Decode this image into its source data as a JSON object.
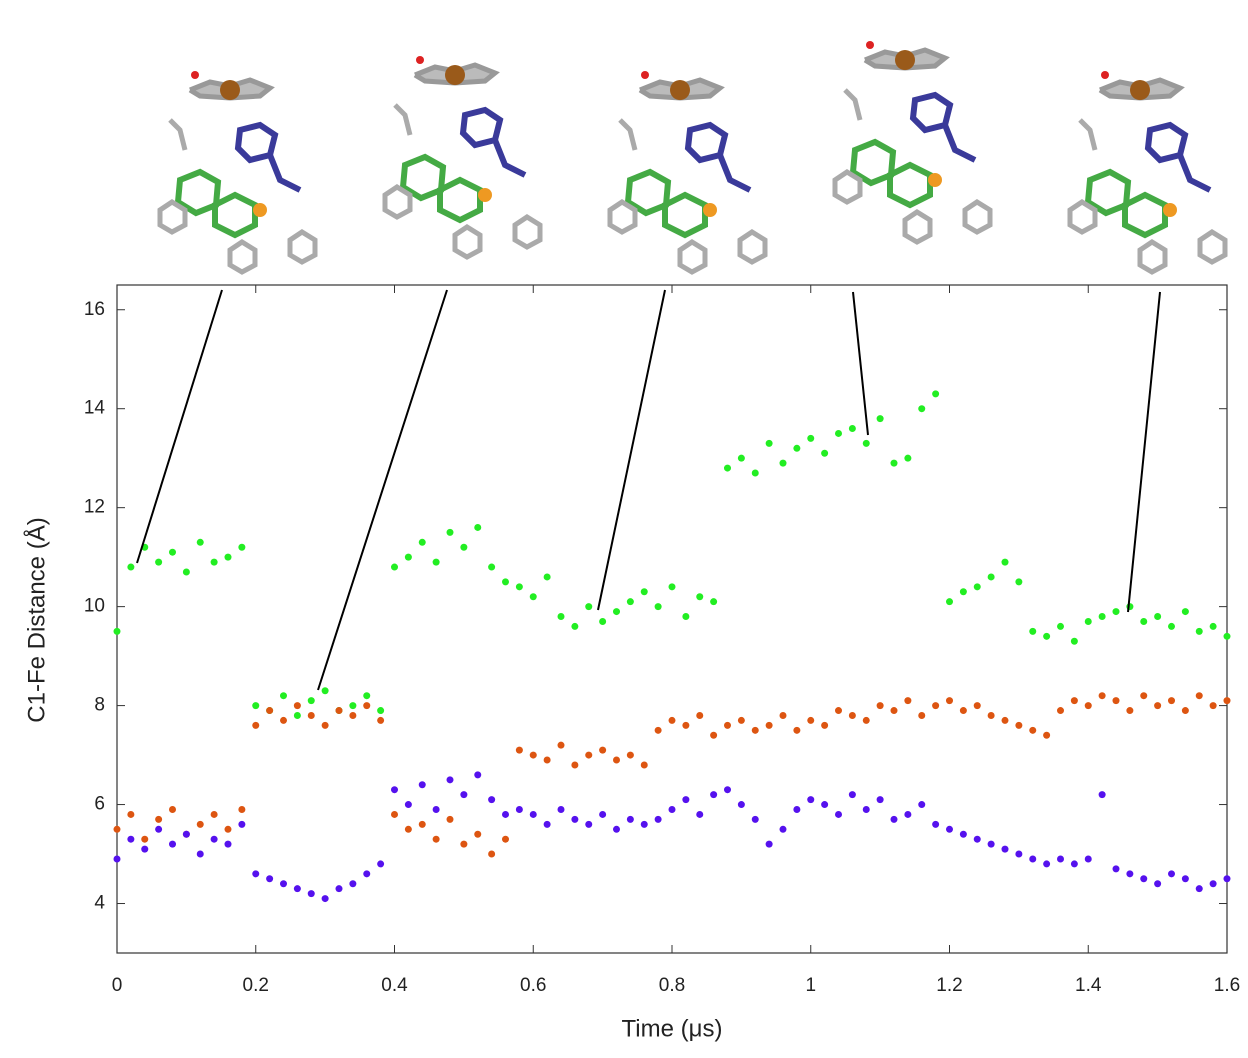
{
  "chart_data": {
    "type": "scatter",
    "xlabel": "Time (μs)",
    "ylabel": "C1-Fe Distance (Å)",
    "xlim": [
      0,
      1.6
    ],
    "ylim": [
      3,
      16.5
    ],
    "xticks": [
      0,
      0.2,
      0.4,
      0.6,
      0.8,
      1,
      1.2,
      1.4,
      1.6
    ],
    "yticks": [
      4,
      6,
      8,
      10,
      12,
      14,
      16
    ],
    "x": [
      0,
      0.02,
      0.04,
      0.06,
      0.08,
      0.1,
      0.12,
      0.14,
      0.16,
      0.18,
      0.2,
      0.22,
      0.24,
      0.26,
      0.28,
      0.3,
      0.32,
      0.34,
      0.36,
      0.38,
      0.4,
      0.42,
      0.44,
      0.46,
      0.48,
      0.5,
      0.52,
      0.54,
      0.56,
      0.58,
      0.6,
      0.62,
      0.64,
      0.66,
      0.68,
      0.7,
      0.72,
      0.74,
      0.76,
      0.78,
      0.8,
      0.82,
      0.84,
      0.86,
      0.88,
      0.9,
      0.92,
      0.94,
      0.96,
      0.98,
      1.0,
      1.02,
      1.04,
      1.06,
      1.08,
      1.1,
      1.12,
      1.14,
      1.16,
      1.18,
      1.2,
      1.22,
      1.24,
      1.26,
      1.28,
      1.3,
      1.32,
      1.34,
      1.36,
      1.38,
      1.4,
      1.42,
      1.44,
      1.46,
      1.48,
      1.5,
      1.52,
      1.54,
      1.56,
      1.58,
      1.6
    ],
    "series": [
      {
        "color": "#22ee22",
        "values": [
          9.5,
          10.8,
          11.2,
          10.9,
          11.1,
          10.7,
          11.3,
          10.9,
          11.0,
          11.2,
          8.0,
          7.9,
          8.2,
          7.8,
          8.1,
          8.3,
          7.9,
          8.0,
          8.2,
          7.9,
          10.8,
          11.0,
          11.3,
          10.9,
          11.5,
          11.2,
          11.6,
          10.8,
          10.5,
          10.4,
          10.2,
          10.6,
          9.8,
          9.6,
          10.0,
          9.7,
          9.9,
          10.1,
          10.3,
          10.0,
          10.4,
          9.8,
          10.2,
          10.1,
          12.8,
          13.0,
          12.7,
          13.3,
          12.9,
          13.2,
          13.4,
          13.1,
          13.5,
          13.6,
          13.3,
          13.8,
          12.9,
          13.0,
          14.0,
          14.3,
          10.1,
          10.3,
          10.4,
          10.6,
          10.9,
          10.5,
          9.5,
          9.4,
          9.6,
          9.3,
          9.7,
          9.8,
          9.9,
          10.0,
          9.7,
          9.8,
          9.6,
          9.9,
          9.5,
          9.6,
          9.4
        ]
      },
      {
        "color": "#dd5511",
        "values": [
          5.5,
          5.8,
          5.3,
          5.7,
          5.9,
          5.4,
          5.6,
          5.8,
          5.5,
          5.9,
          7.6,
          7.9,
          7.7,
          8.0,
          7.8,
          7.6,
          7.9,
          7.8,
          8.0,
          7.7,
          5.8,
          5.5,
          5.6,
          5.3,
          5.7,
          5.2,
          5.4,
          5.0,
          5.3,
          7.1,
          7.0,
          6.9,
          7.2,
          6.8,
          7.0,
          7.1,
          6.9,
          7.0,
          6.8,
          7.5,
          7.7,
          7.6,
          7.8,
          7.4,
          7.6,
          7.7,
          7.5,
          7.6,
          7.8,
          7.5,
          7.7,
          7.6,
          7.9,
          7.8,
          7.7,
          8.0,
          7.9,
          8.1,
          7.8,
          8.0,
          8.1,
          7.9,
          8.0,
          7.8,
          7.7,
          7.6,
          7.5,
          7.4,
          7.9,
          8.1,
          8.0,
          8.2,
          8.1,
          7.9,
          8.2,
          8.0,
          8.1,
          7.9,
          8.2,
          8.0,
          8.1
        ]
      },
      {
        "color": "#5511ee",
        "values": [
          4.9,
          5.3,
          5.1,
          5.5,
          5.2,
          5.4,
          5.0,
          5.3,
          5.2,
          5.6,
          4.6,
          4.5,
          4.4,
          4.3,
          4.2,
          4.1,
          4.3,
          4.4,
          4.6,
          4.8,
          6.3,
          6.0,
          6.4,
          5.9,
          6.5,
          6.2,
          6.6,
          6.1,
          5.8,
          5.9,
          5.8,
          5.6,
          5.9,
          5.7,
          5.6,
          5.8,
          5.5,
          5.7,
          5.6,
          5.7,
          5.9,
          6.1,
          5.8,
          6.2,
          6.3,
          6.0,
          5.7,
          5.2,
          5.5,
          5.9,
          6.1,
          6.0,
          5.8,
          6.2,
          5.9,
          6.1,
          5.7,
          5.8,
          6.0,
          5.6,
          5.5,
          5.4,
          5.3,
          5.2,
          5.1,
          5.0,
          4.9,
          4.8,
          4.9,
          4.8,
          4.9,
          6.2,
          4.7,
          4.6,
          4.5,
          4.4,
          4.6,
          4.5,
          4.3,
          4.4,
          4.5
        ]
      }
    ]
  }
}
